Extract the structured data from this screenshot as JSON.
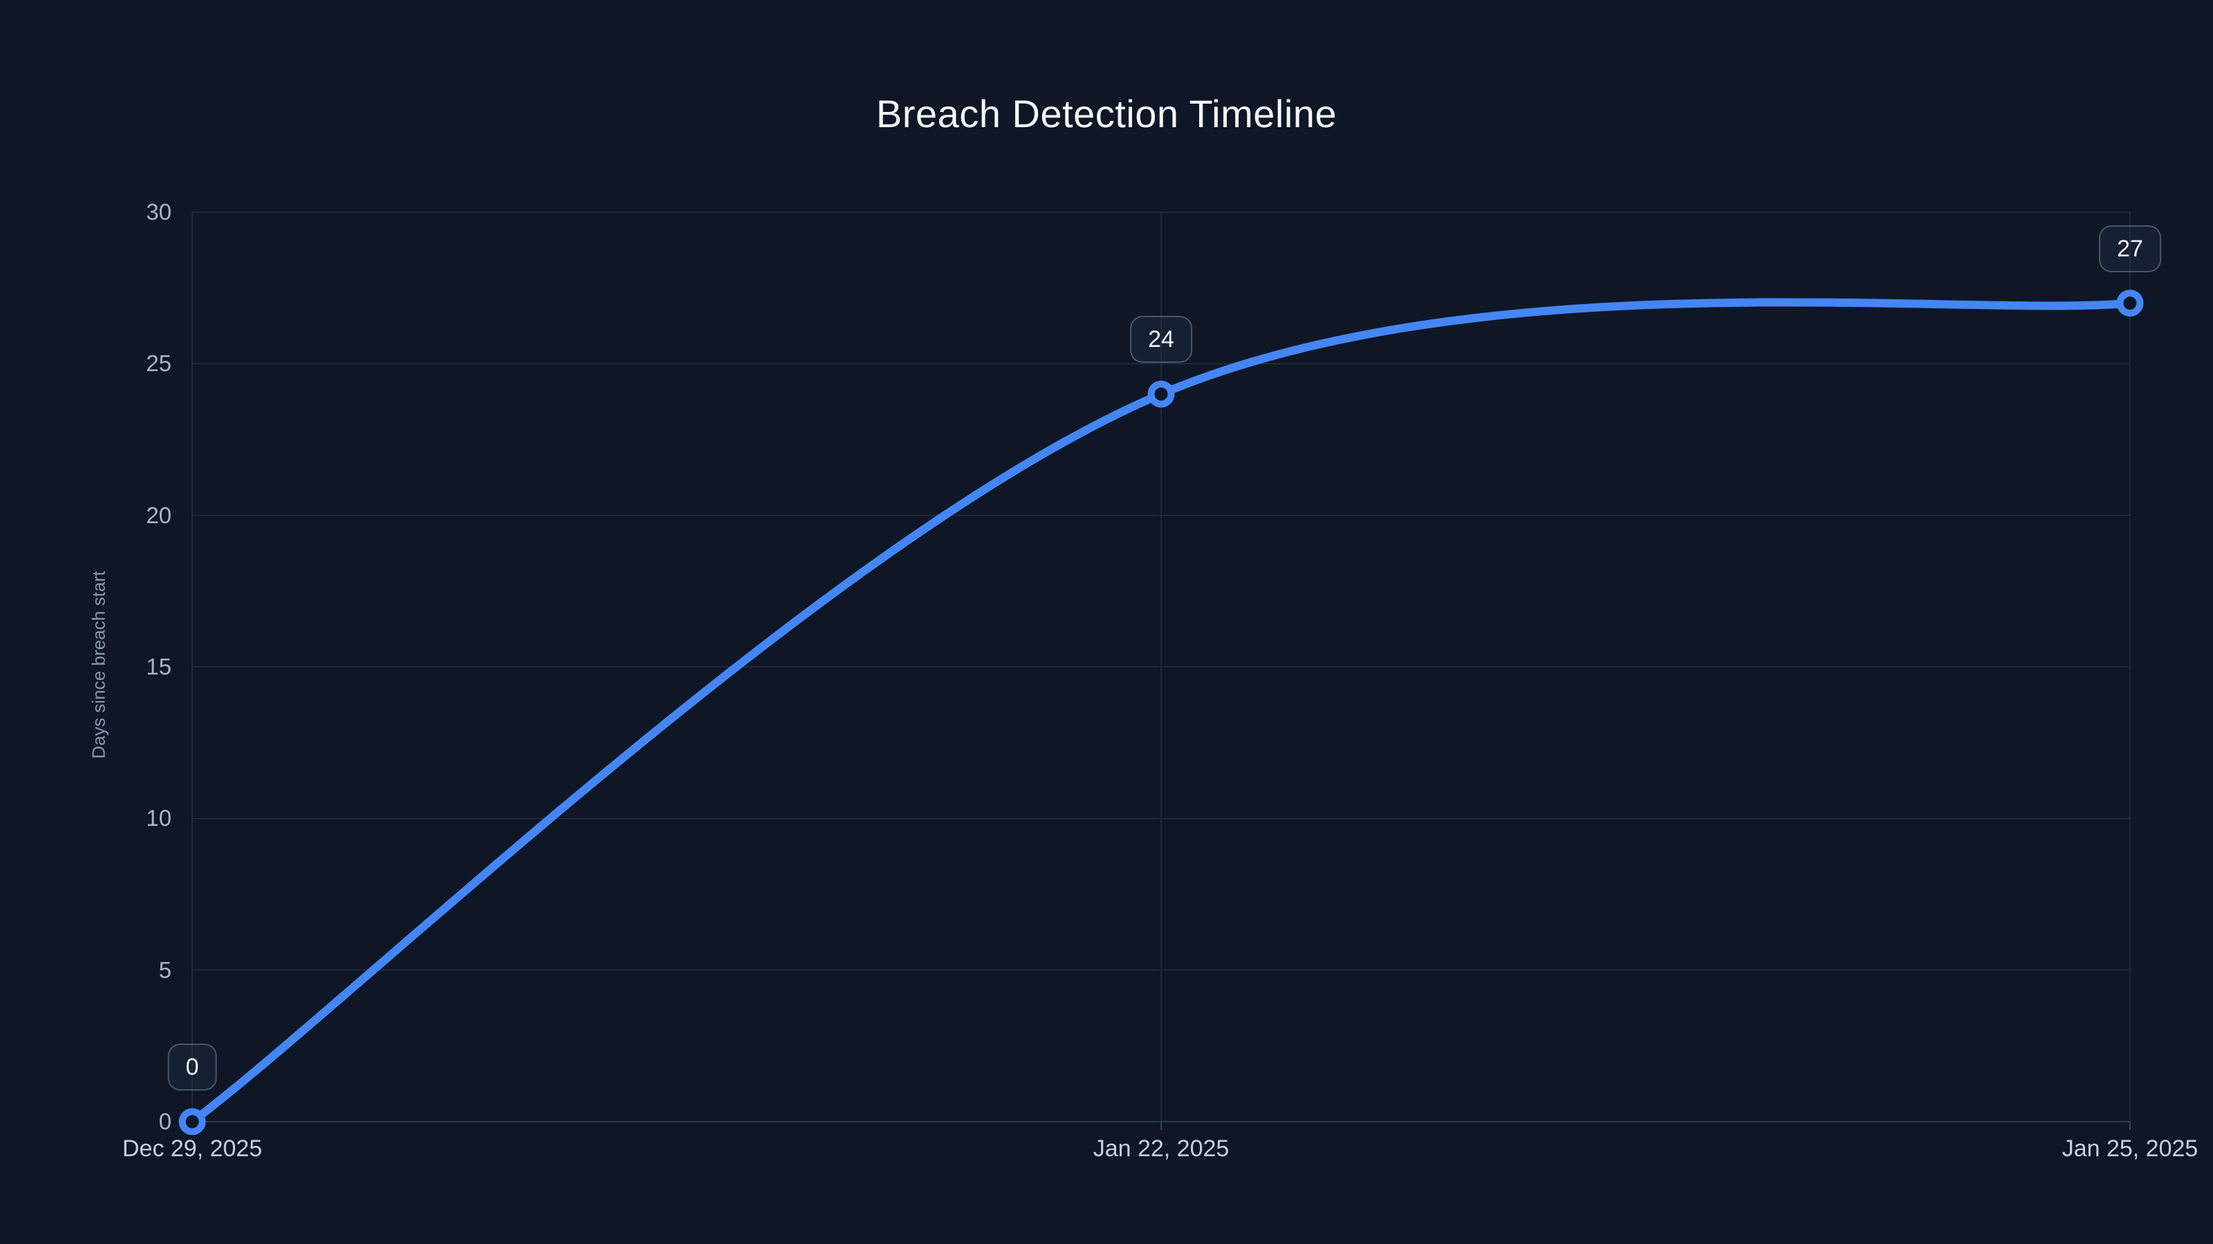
{
  "header": {
    "title": "Breach Detection Timeline"
  },
  "chart_data": {
    "type": "line",
    "title": "Breach Detection Timeline",
    "xlabel": "",
    "ylabel": "Days since breach start",
    "categories": [
      "Dec 29, 2025",
      "Jan 22, 2025",
      "Jan 25, 2025"
    ],
    "series": [
      {
        "name": "Days since breach start",
        "values": [
          0,
          24,
          27
        ],
        "point_labels": [
          "0",
          "24",
          "27"
        ]
      }
    ],
    "ylim": [
      0,
      30
    ],
    "yticks": [
      0,
      5,
      10,
      15,
      20,
      25,
      30
    ],
    "grid": true,
    "smooth": true,
    "legend_position": "none",
    "theme": {
      "background": "#0f1726",
      "line_color": "#4486f6",
      "marker_fill": "#0f1726",
      "grid_color": "#242e42",
      "axis_line_color": "#2e3a52",
      "tick_color": "#3a4558",
      "y_tick_text": "#a9b4c5",
      "x_tick_text": "#c7cfdd",
      "axis_name_text": "#8d99ab",
      "badge_border": "#5a6478",
      "badge_text": "#eef2f9",
      "title_text": "#f3f6fb"
    }
  }
}
